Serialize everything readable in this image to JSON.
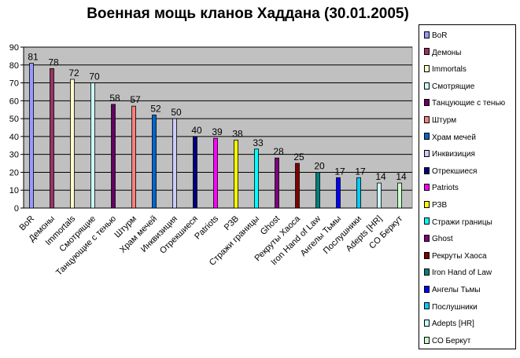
{
  "chart_data": {
    "type": "bar",
    "title": "Военная мощь кланов Хаддана (30.01.2005)",
    "categories": [
      "BoR",
      "Демоны",
      "Immortals",
      "Смотрящие",
      "Танцующие с тенью",
      "Штурм",
      "Храм мечей",
      "Инквизиция",
      "Отрекшиеся",
      "Patriots",
      "РЗВ",
      "Стражи границы",
      "Ghost",
      "Рекруты Хаоса",
      "Iron Hand of Law",
      "Ангелы Тьмы",
      "Послушники",
      "Adepts [HR]",
      "CO Беркут"
    ],
    "legend_labels": [
      "BoR",
      "Демоны",
      "Immortals",
      "Смотрящие",
      "Танцующие с тенью",
      "Штурм",
      "Храм мечей",
      "Инквизиция",
      "Отрекшиеся",
      "Patriots",
      "РЗВ",
      "Стражи границы",
      "Ghost",
      "Рекруты Хаоса",
      "Iron Hand of Law",
      "Ангелы Тьмы",
      "Послушники",
      "Adepts [HR]",
      "СО Беркут"
    ],
    "values": [
      81,
      78,
      72,
      70,
      58,
      57,
      52,
      50,
      40,
      39,
      38,
      33,
      28,
      25,
      20,
      17,
      17,
      14,
      14
    ],
    "colors": [
      "#9999ff",
      "#993366",
      "#ffffcc",
      "#ccffff",
      "#660066",
      "#ff8080",
      "#0066cc",
      "#ccccff",
      "#000080",
      "#ff00ff",
      "#ffff00",
      "#00ffff",
      "#800080",
      "#800000",
      "#008080",
      "#0000ff",
      "#00ccff",
      "#ccffff",
      "#ccffcc"
    ],
    "ylim": [
      0,
      90
    ],
    "yticks": [
      0,
      10,
      20,
      30,
      40,
      50,
      60,
      70,
      80,
      90
    ],
    "grid": true,
    "plot_background": "#c0c0c0",
    "legend_position": "right"
  }
}
